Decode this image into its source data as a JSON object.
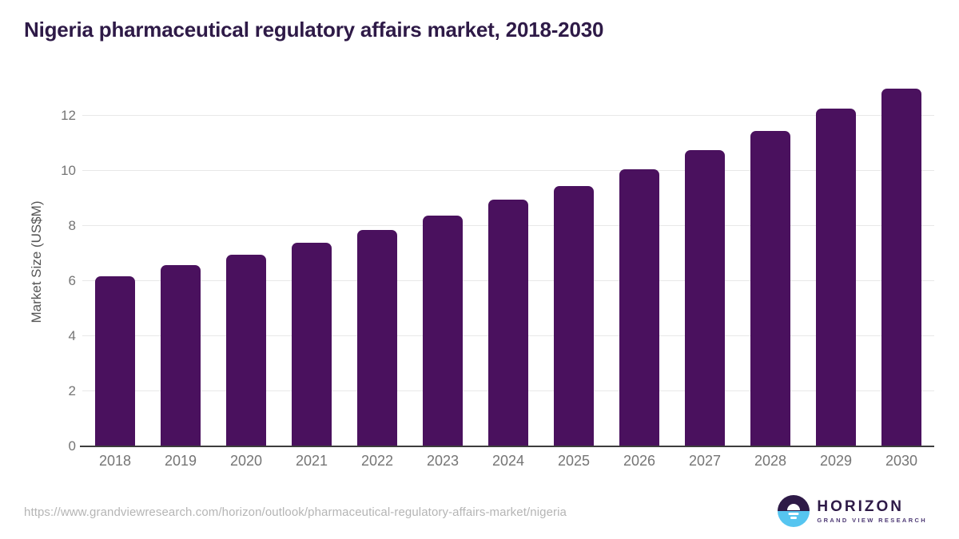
{
  "title": "Nigeria pharmaceutical regulatory affairs market, 2018-2030",
  "chart_data": {
    "type": "bar",
    "categories": [
      "2018",
      "2019",
      "2020",
      "2021",
      "2022",
      "2023",
      "2024",
      "2025",
      "2026",
      "2027",
      "2028",
      "2029",
      "2030"
    ],
    "values": [
      6.17,
      6.57,
      6.97,
      7.39,
      7.86,
      8.38,
      8.95,
      9.46,
      10.06,
      10.76,
      11.45,
      12.27,
      12.98
    ],
    "title": "Nigeria pharmaceutical regulatory affairs market, 2018-2030",
    "xlabel": "",
    "ylabel": "Market Size (US$M)",
    "ylim": [
      0,
      13.36
    ],
    "yticks": [
      0,
      2,
      4,
      6,
      8,
      10,
      12
    ],
    "grid": true,
    "legend": "none",
    "bar_color": "#4a115e"
  },
  "colors": {
    "bar": "#4a115e",
    "title_text": "#2e1a47",
    "tick_text": "#757575",
    "gridline": "#e8e8e8",
    "axis_line": "#3d3d3d",
    "url_text": "#b5b5b5",
    "logo_purple": "#2e1a47",
    "logo_blue": "#56c5f0"
  },
  "footer": {
    "source_url": "https://www.grandviewresearch.com/horizon/outlook/pharmaceutical-regulatory-affairs-market/nigeria",
    "logo_name": "HORIZON",
    "logo_tagline": "GRAND VIEW RESEARCH"
  }
}
